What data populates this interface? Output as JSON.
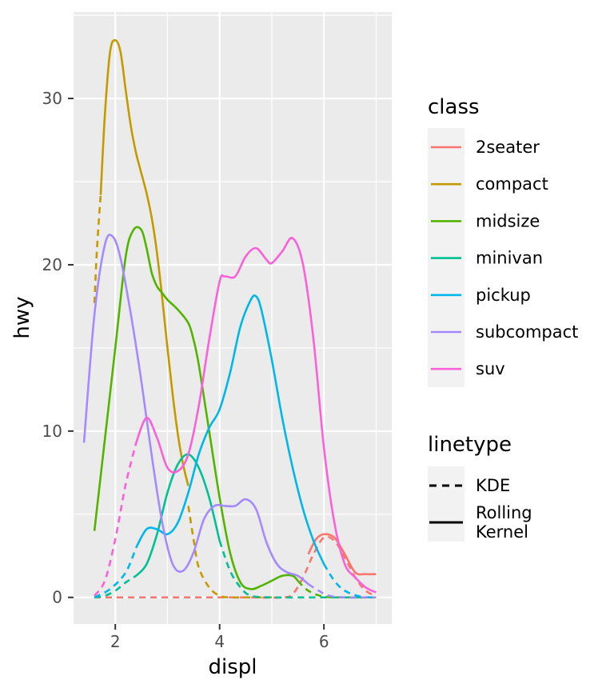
{
  "chart_data": {
    "type": "line",
    "xlabel": "displ",
    "ylabel": "hwy",
    "xlim": [
      1.2,
      7.3
    ],
    "ylim": [
      -1.6,
      35.2
    ],
    "x_ticks": [
      2,
      4,
      6
    ],
    "x_tick_labels": [
      "2",
      "4",
      "6"
    ],
    "y_ticks": [
      0,
      10,
      20,
      30
    ],
    "y_tick_labels": [
      "0",
      "10",
      "20",
      "30"
    ],
    "grid": true,
    "legend_position": "right",
    "colors": {
      "2seater": "#F8766D",
      "compact": "#C49A00",
      "midsize": "#53B400",
      "minivan": "#00C094",
      "pickup": "#00B6EB",
      "subcompact": "#A58AFF",
      "suv": "#FB61D7"
    },
    "legend_class": {
      "title": "class",
      "entries": [
        "2seater",
        "compact",
        "midsize",
        "minivan",
        "pickup",
        "subcompact",
        "suv"
      ]
    },
    "legend_linetype": {
      "title": "linetype",
      "entries": [
        {
          "label": "KDE",
          "dash": "dashed"
        },
        {
          "label_lines": [
            "Rolling",
            "Kernel"
          ],
          "dash": "solid"
        }
      ]
    },
    "series": [
      {
        "name": "2seater",
        "linetype": "KDE",
        "x": [
          1.6,
          2.5,
          3.5,
          4.5,
          5.2,
          5.4,
          5.6,
          5.8,
          6.0,
          6.2,
          6.4,
          6.6,
          6.8,
          7.0
        ],
        "y": [
          0,
          0,
          0,
          0,
          0,
          0.2,
          1.2,
          2.6,
          3.6,
          3.4,
          2.4,
          1.2,
          0.4,
          0.1
        ]
      },
      {
        "name": "2seater",
        "linetype": "Rolling Kernel",
        "x": [
          5.7,
          5.85,
          6.0,
          6.2,
          6.4,
          6.6,
          6.8,
          7.0
        ],
        "y": [
          2.6,
          3.5,
          3.8,
          3.6,
          2.6,
          1.5,
          1.4,
          1.4
        ]
      },
      {
        "name": "compact",
        "linetype": "KDE",
        "x": [
          1.6,
          1.65,
          1.72
        ],
        "y": [
          17.7,
          21.0,
          24.2
        ]
      },
      {
        "name": "compact",
        "linetype": "Rolling Kernel",
        "x": [
          1.72,
          1.8,
          1.9,
          2.0,
          2.1,
          2.2,
          2.3,
          2.4,
          2.5,
          2.6,
          2.7,
          2.8,
          2.9,
          3.0,
          3.1,
          3.2,
          3.3,
          3.4
        ],
        "y": [
          24.2,
          29.0,
          32.8,
          33.5,
          32.8,
          30.5,
          28.3,
          26.7,
          25.5,
          24.3,
          22.8,
          20.7,
          18.0,
          15.0,
          12.2,
          9.8,
          8.0,
          6.7
        ]
      },
      {
        "name": "compact",
        "linetype": "KDE",
        "x": [
          3.4,
          3.5,
          3.6,
          3.8,
          4.0,
          4.2,
          4.5,
          5.0
        ],
        "y": [
          5.5,
          3.5,
          1.8,
          0.6,
          0.1,
          0,
          0,
          0
        ]
      },
      {
        "name": "midsize",
        "linetype": "Rolling Kernel",
        "x": [
          1.6,
          1.8,
          2.0,
          2.2,
          2.35,
          2.5,
          2.6,
          2.7,
          2.8,
          2.9,
          3.0,
          3.2,
          3.4,
          3.5,
          3.6,
          3.8,
          4.0,
          4.2,
          4.4,
          4.6,
          4.8,
          5.0,
          5.2,
          5.4,
          5.5
        ],
        "y": [
          4.0,
          9.5,
          15.0,
          20.5,
          22.1,
          22.1,
          21.0,
          19.5,
          18.7,
          18.3,
          17.9,
          17.3,
          16.5,
          15.5,
          14.0,
          10.0,
          6.0,
          2.7,
          0.9,
          0.5,
          0.7,
          1.0,
          1.3,
          1.3,
          1.0
        ]
      },
      {
        "name": "midsize",
        "linetype": "KDE",
        "x": [
          5.5,
          5.7,
          6.0,
          6.5,
          7.0
        ],
        "y": [
          1.0,
          0.4,
          0.05,
          0,
          0
        ]
      },
      {
        "name": "minivan",
        "linetype": "KDE",
        "x": [
          1.6,
          1.8,
          2.0,
          2.2,
          2.4
        ],
        "y": [
          0,
          0.1,
          0.4,
          0.9,
          1.3
        ]
      },
      {
        "name": "minivan",
        "linetype": "Rolling Kernel",
        "x": [
          2.4,
          2.6,
          2.8,
          3.0,
          3.2,
          3.4,
          3.6,
          3.8,
          4.0
        ],
        "y": [
          1.3,
          2.0,
          3.8,
          6.3,
          8.0,
          8.6,
          7.8,
          6.0,
          3.4
        ]
      },
      {
        "name": "minivan",
        "linetype": "KDE",
        "x": [
          4.0,
          4.2,
          4.4,
          4.6,
          5.0,
          6.0,
          7.0
        ],
        "y": [
          3.4,
          1.6,
          0.6,
          0.1,
          0,
          0,
          0
        ]
      },
      {
        "name": "pickup",
        "linetype": "KDE",
        "x": [
          1.6,
          1.9,
          2.2,
          2.4
        ],
        "y": [
          0,
          0.5,
          1.5,
          3.0
        ]
      },
      {
        "name": "pickup",
        "linetype": "Rolling Kernel",
        "x": [
          2.4,
          2.6,
          2.8,
          3.0,
          3.2,
          3.4,
          3.6,
          3.8,
          4.0,
          4.2,
          4.4,
          4.6,
          4.7,
          4.8,
          5.0,
          5.2,
          5.4,
          5.6,
          5.8,
          6.0
        ],
        "y": [
          3.0,
          4.1,
          4.1,
          3.8,
          4.5,
          6.3,
          8.6,
          10.2,
          11.3,
          13.5,
          16.3,
          17.9,
          18.1,
          17.3,
          14.3,
          10.8,
          7.8,
          5.3,
          3.4,
          2.0
        ]
      },
      {
        "name": "pickup",
        "linetype": "KDE",
        "x": [
          6.0,
          6.2,
          6.4,
          6.7,
          7.0
        ],
        "y": [
          2.0,
          1.0,
          0.4,
          0.05,
          0
        ]
      },
      {
        "name": "subcompact",
        "linetype": "Rolling Kernel",
        "x": [
          1.4,
          1.6,
          1.8,
          1.95,
          2.1,
          2.3,
          2.5,
          2.7,
          2.9,
          3.1,
          3.3,
          3.5,
          3.7,
          3.9,
          4.1,
          4.3,
          4.5,
          4.7,
          4.9,
          5.1,
          5.3,
          5.5,
          5.7
        ],
        "y": [
          9.3,
          17.0,
          21.2,
          21.7,
          20.4,
          17.0,
          13.0,
          8.5,
          4.5,
          2.0,
          1.6,
          2.7,
          4.7,
          5.5,
          5.5,
          5.5,
          5.9,
          5.3,
          3.3,
          2.0,
          1.5,
          1.3,
          0.8
        ]
      },
      {
        "name": "subcompact",
        "linetype": "KDE",
        "x": [
          5.7,
          5.9,
          6.1,
          6.4,
          7.0
        ],
        "y": [
          0.8,
          0.4,
          0.1,
          0,
          0
        ]
      },
      {
        "name": "suv",
        "linetype": "KDE",
        "x": [
          1.6,
          1.8,
          2.0,
          2.2,
          2.4
        ],
        "y": [
          0.1,
          1.0,
          3.5,
          6.8,
          9.3
        ]
      },
      {
        "name": "suv",
        "linetype": "Rolling Kernel",
        "x": [
          2.4,
          2.6,
          2.8,
          3.0,
          3.2,
          3.4,
          3.6,
          3.8,
          4.0,
          4.1,
          4.3,
          4.5,
          4.7,
          4.9,
          5.0,
          5.2,
          5.4,
          5.6,
          5.8,
          6.0,
          6.2,
          6.4,
          6.6,
          6.8,
          7.0
        ],
        "y": [
          9.3,
          10.8,
          9.6,
          7.8,
          7.6,
          8.6,
          11.5,
          15.5,
          19.0,
          19.3,
          19.3,
          20.5,
          21.0,
          20.3,
          20.1,
          20.8,
          21.6,
          20.0,
          15.5,
          9.0,
          4.5,
          2.0,
          1.2,
          0.6,
          0.3
        ]
      }
    ]
  }
}
